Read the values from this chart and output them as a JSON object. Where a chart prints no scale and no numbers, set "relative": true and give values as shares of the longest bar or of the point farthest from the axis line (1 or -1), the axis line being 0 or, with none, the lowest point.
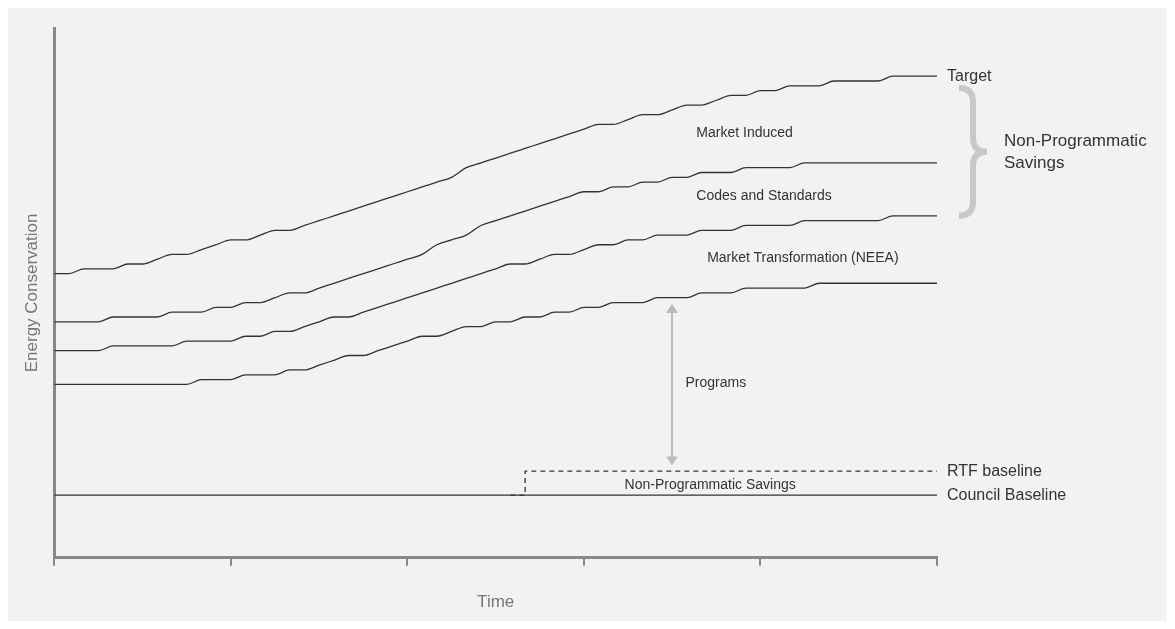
{
  "chart_data": {
    "type": "line",
    "relative": true,
    "xlabel": "Time",
    "ylabel": "Energy Conservation",
    "marker": "none",
    "line_style": "solid",
    "legend": false,
    "categories": [
      null,
      null,
      null,
      null,
      null,
      null,
      null,
      null,
      null,
      null,
      null,
      null,
      null,
      null,
      null,
      null,
      null,
      null,
      null,
      null,
      null,
      null,
      null,
      null,
      null,
      null,
      null,
      null,
      null,
      null,
      null,
      null,
      null,
      null,
      null,
      null,
      null,
      null,
      null,
      null,
      null,
      null,
      null,
      null,
      null,
      null,
      null,
      null,
      null,
      null,
      null,
      null,
      null,
      null,
      null,
      null,
      null,
      null,
      null,
      null,
      null
    ],
    "series": [
      {
        "name": "Target",
        "color": "#333333",
        "values": [
          0.59,
          0.59,
          0.6,
          0.6,
          0.6,
          0.61,
          0.61,
          0.62,
          0.63,
          0.63,
          0.64,
          0.65,
          0.66,
          0.66,
          0.67,
          0.68,
          0.68,
          0.69,
          0.7,
          0.71,
          0.72,
          0.73,
          0.74,
          0.75,
          0.76,
          0.77,
          0.78,
          0.79,
          0.81,
          0.82,
          0.83,
          0.84,
          0.85,
          0.86,
          0.87,
          0.88,
          0.89,
          0.9,
          0.9,
          0.91,
          0.92,
          0.92,
          0.93,
          0.94,
          0.94,
          0.95,
          0.96,
          0.96,
          0.97,
          0.97,
          0.98,
          0.98,
          0.98,
          0.99,
          0.99,
          0.99,
          0.99,
          1.0,
          1.0,
          1.0,
          1.0
        ]
      },
      {
        "color": "#333333",
        "values": [
          0.49,
          0.49,
          0.49,
          0.49,
          0.5,
          0.5,
          0.5,
          0.5,
          0.51,
          0.51,
          0.51,
          0.52,
          0.52,
          0.53,
          0.53,
          0.54,
          0.55,
          0.55,
          0.56,
          0.57,
          0.58,
          0.59,
          0.6,
          0.61,
          0.62,
          0.63,
          0.65,
          0.66,
          0.67,
          0.69,
          0.7,
          0.71,
          0.72,
          0.73,
          0.74,
          0.75,
          0.76,
          0.76,
          0.77,
          0.77,
          0.78,
          0.78,
          0.79,
          0.79,
          0.8,
          0.8,
          0.8,
          0.81,
          0.81,
          0.81,
          0.81,
          0.82,
          0.82,
          0.82,
          0.82,
          0.82,
          0.82,
          0.82,
          0.82,
          0.82,
          0.82
        ]
      },
      {
        "color": "#333333",
        "values": [
          0.43,
          0.43,
          0.43,
          0.43,
          0.44,
          0.44,
          0.44,
          0.44,
          0.44,
          0.45,
          0.45,
          0.45,
          0.45,
          0.46,
          0.46,
          0.47,
          0.47,
          0.48,
          0.49,
          0.5,
          0.5,
          0.51,
          0.52,
          0.53,
          0.54,
          0.55,
          0.56,
          0.57,
          0.58,
          0.59,
          0.6,
          0.61,
          0.61,
          0.62,
          0.63,
          0.63,
          0.64,
          0.65,
          0.65,
          0.66,
          0.66,
          0.67,
          0.67,
          0.67,
          0.68,
          0.68,
          0.68,
          0.69,
          0.69,
          0.69,
          0.69,
          0.7,
          0.7,
          0.7,
          0.7,
          0.7,
          0.7,
          0.71,
          0.71,
          0.71,
          0.71
        ]
      },
      {
        "color": "#333333",
        "values": [
          0.36,
          0.36,
          0.36,
          0.36,
          0.36,
          0.36,
          0.36,
          0.36,
          0.36,
          0.36,
          0.37,
          0.37,
          0.37,
          0.38,
          0.38,
          0.38,
          0.39,
          0.39,
          0.4,
          0.41,
          0.42,
          0.42,
          0.43,
          0.44,
          0.45,
          0.46,
          0.46,
          0.47,
          0.48,
          0.48,
          0.49,
          0.49,
          0.5,
          0.5,
          0.51,
          0.51,
          0.52,
          0.52,
          0.53,
          0.53,
          0.53,
          0.54,
          0.54,
          0.54,
          0.55,
          0.55,
          0.55,
          0.56,
          0.56,
          0.56,
          0.56,
          0.56,
          0.57,
          0.57,
          0.57,
          0.57,
          0.57,
          0.57,
          0.57,
          0.57,
          0.57
        ]
      },
      {
        "name": "RTF baseline",
        "type": "step",
        "color": "#333333",
        "line_style": "dashed",
        "values": [
          null,
          null,
          null,
          null,
          null,
          null,
          null,
          null,
          null,
          null,
          null,
          null,
          null,
          null,
          null,
          null,
          null,
          null,
          null,
          null,
          null,
          null,
          null,
          null,
          null,
          null,
          null,
          null,
          null,
          null,
          null,
          0.13,
          0.18,
          0.18,
          0.18,
          0.18,
          0.18,
          0.18,
          0.18,
          0.18,
          0.18,
          0.18,
          0.18,
          0.18,
          0.18,
          0.18,
          0.18,
          0.18,
          0.18,
          0.18,
          0.18,
          0.18,
          0.18,
          0.18,
          0.18,
          0.18,
          0.18,
          0.18,
          0.18,
          0.18,
          0.18
        ]
      },
      {
        "name": "Council Baseline",
        "color": "#333333",
        "values": [
          0.13,
          0.13,
          0.13,
          0.13,
          0.13,
          0.13,
          0.13,
          0.13,
          0.13,
          0.13,
          0.13,
          0.13,
          0.13,
          0.13,
          0.13,
          0.13,
          0.13,
          0.13,
          0.13,
          0.13,
          0.13,
          0.13,
          0.13,
          0.13,
          0.13,
          0.13,
          0.13,
          0.13,
          0.13,
          0.13,
          0.13,
          0.13,
          0.13,
          0.13,
          0.13,
          0.13,
          0.13,
          0.13,
          0.13,
          0.13,
          0.13,
          0.13,
          0.13,
          0.13,
          0.13,
          0.13,
          0.13,
          0.13,
          0.13,
          0.13,
          0.13,
          0.13,
          0.13,
          0.13,
          0.13,
          0.13,
          0.13,
          0.13,
          0.13,
          0.13,
          0.13
        ]
      }
    ],
    "annotations": [
      "Market Induced",
      "Codes and Standards",
      "Market Transformation (NEEA)",
      "Programs",
      "Non-Programmatic Savings",
      "Non-Programmatic Savings"
    ]
  }
}
